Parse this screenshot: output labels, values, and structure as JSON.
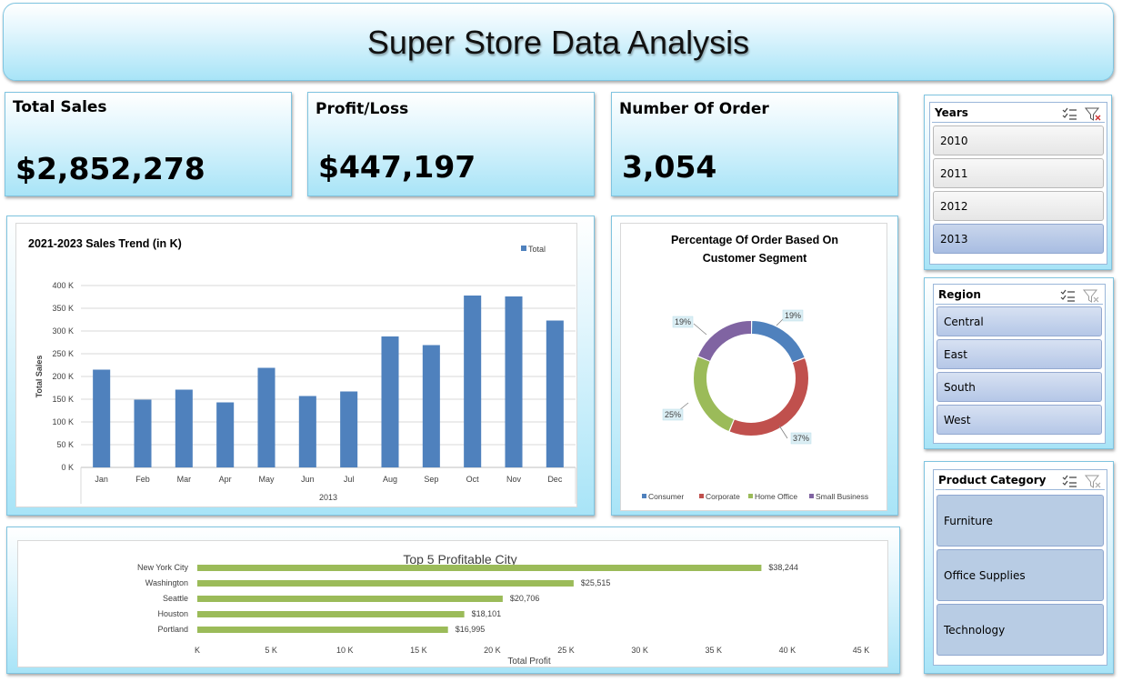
{
  "title": "Super Store Data Analysis",
  "kpis": {
    "total_sales": {
      "label": "Total Sales",
      "value": "$2,852,278"
    },
    "profit_loss": {
      "label": "Profit/Loss",
      "value": "$447,197"
    },
    "orders": {
      "label": "Number Of Order",
      "value": "3,054"
    }
  },
  "slicers": {
    "years": {
      "title": "Years",
      "items": [
        "2010",
        "2011",
        "2012",
        "2013"
      ],
      "selected": "2013"
    },
    "region": {
      "title": "Region",
      "items": [
        "Central",
        "East",
        "South",
        "West"
      ]
    },
    "category": {
      "title": "Product Category",
      "items": [
        "Furniture",
        "Office Supplies",
        "Technology"
      ]
    }
  },
  "colors": {
    "bar": "#4f81bd",
    "hbar": "#9bbb59",
    "consumer": "#4f81bd",
    "corporate": "#c0504d",
    "home_office": "#9bbb59",
    "small_business": "#8064a2"
  },
  "chart_data": [
    {
      "type": "bar",
      "title": "2021-2023 Sales Trend (in K)",
      "xlabel": "2013",
      "ylabel": "Total Sales",
      "categories": [
        "Jan",
        "Feb",
        "Mar",
        "Apr",
        "May",
        "Jun",
        "Jul",
        "Aug",
        "Sep",
        "Oct",
        "Nov",
        "Dec"
      ],
      "series": [
        {
          "name": "Total",
          "values": [
            215,
            149,
            171,
            143,
            219,
            157,
            167,
            288,
            269,
            378,
            376,
            323
          ]
        }
      ],
      "ylim": [
        0,
        400
      ],
      "yticks": [
        "0 K",
        "50 K",
        "100 K",
        "150 K",
        "200 K",
        "250 K",
        "300 K",
        "350 K",
        "400 K"
      ],
      "grid": true,
      "legend": "top-right"
    },
    {
      "type": "pie",
      "title": "Percentage Of Order Based On Customer Segment",
      "categories": [
        "Consumer",
        "Corporate",
        "Home Office",
        "Small Business"
      ],
      "values": [
        19,
        37,
        25,
        19
      ],
      "labels": [
        "19%",
        "37%",
        "25%",
        "19%"
      ],
      "legend": "bottom"
    },
    {
      "type": "bar",
      "orientation": "horizontal",
      "title": "Top  5 Profitable City",
      "xlabel": "Total Profit",
      "categories": [
        "New York City",
        "Washington",
        "Seattle",
        "Houston",
        "Portland"
      ],
      "values": [
        38244,
        25515,
        20706,
        18101,
        16995
      ],
      "labels": [
        "$38,244",
        "$25,515",
        "$20,706",
        "$18,101",
        "$16,995"
      ],
      "xlim": [
        0,
        45000
      ],
      "xticks": [
        "K",
        "5 K",
        "10 K",
        "15 K",
        "20 K",
        "25 K",
        "30 K",
        "35 K",
        "40 K",
        "45 K"
      ]
    }
  ]
}
